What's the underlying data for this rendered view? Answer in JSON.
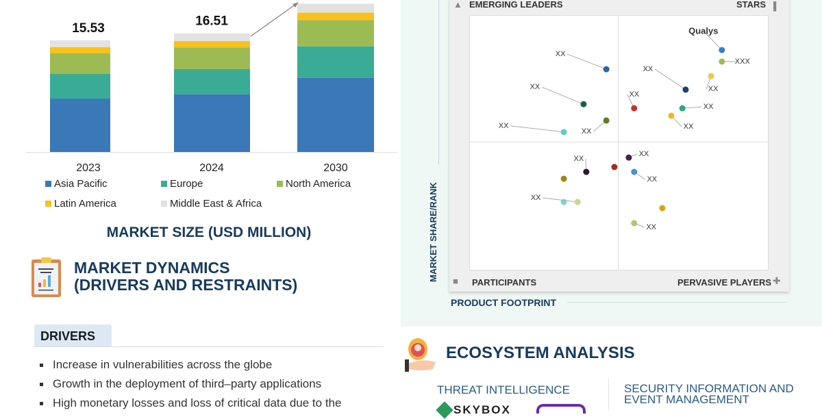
{
  "chart_data": [
    {
      "type": "bar",
      "stacked": true,
      "title": "MARKET SIZE (USD MILLION)",
      "categories": [
        "2023",
        "2024",
        "2030"
      ],
      "totals_labels": [
        "15.53",
        "16.51",
        ""
      ],
      "ylim": [
        0,
        21
      ],
      "grid": false,
      "legend": "bottom",
      "series": [
        {
          "name": "Asia Pacific",
          "color": "#3a78b8",
          "values": [
            7.43,
            8.01,
            10.3
          ]
        },
        {
          "name": "Europe",
          "color": "#3aab95",
          "values": [
            3.43,
            3.52,
            4.4
          ]
        },
        {
          "name": "North America",
          "color": "#9cbb55",
          "values": [
            2.86,
            3.03,
            3.65
          ]
        },
        {
          "name": "Latin America",
          "color": "#f9c11b",
          "values": [
            0.86,
            0.88,
            1.05
          ]
        },
        {
          "name": "Middle East & Africa",
          "color": "#e2e2e2",
          "values": [
            0.95,
            1.07,
            1.25
          ]
        }
      ]
    },
    {
      "type": "scatter",
      "xlabel": "PRODUCT FOOTPRINT",
      "ylabel": "MARKET SHARE/RANK",
      "xlim": [
        0,
        100
      ],
      "ylim": [
        0,
        100
      ],
      "quadrants": {
        "top_left": "EMERGING LEADERS",
        "top_right": "STARS",
        "bottom_left": "PARTICIPANTS",
        "bottom_right": "PERVASIVE PLAYERS"
      },
      "points": [
        {
          "label": "Qualys",
          "x": 84.4,
          "y": 86.3,
          "color": "#3a7fc8"
        },
        {
          "label": "XXX",
          "x": 84.4,
          "y": 81.8,
          "color": "#9cbb55"
        },
        {
          "label": "XX",
          "x": 80.8,
          "y": 76.1,
          "color": "#f5c842"
        },
        {
          "label": "XX",
          "x": 72.3,
          "y": 70.8,
          "color": "#1c3f6e"
        },
        {
          "label": "XX",
          "x": 55.1,
          "y": 63.5,
          "color": "#c8312f"
        },
        {
          "label": "XX",
          "x": 71.2,
          "y": 63.5,
          "color": "#2aa592"
        },
        {
          "label": "XX",
          "x": 67.5,
          "y": 60.6,
          "color": "#f5b81c"
        },
        {
          "label": "XX",
          "x": 45.8,
          "y": 78.8,
          "color": "#2a66a8"
        },
        {
          "label": "XX",
          "x": 38.2,
          "y": 65.1,
          "color": "#1f5e4a"
        },
        {
          "label": "XX",
          "x": 45.8,
          "y": 58.7,
          "color": "#5f7a23"
        },
        {
          "label": "XX",
          "x": 31.6,
          "y": 54.2,
          "color": "#5bd0c0"
        },
        {
          "label": "XX",
          "x": 53.3,
          "y": 44.2,
          "color": "#45204e"
        },
        {
          "label": "XX",
          "x": 39.1,
          "y": 38.6,
          "color": "#2a1a2e"
        },
        {
          "label": "",
          "x": 48.5,
          "y": 40.5,
          "color": "#a52a25"
        },
        {
          "label": "XX",
          "x": 55.1,
          "y": 38.6,
          "color": "#4a90d6"
        },
        {
          "label": "",
          "x": 31.6,
          "y": 35.9,
          "color": "#a88410"
        },
        {
          "label": "",
          "x": 31.6,
          "y": 26.8,
          "color": "#7fd6cc"
        },
        {
          "label": "XX",
          "x": 36.2,
          "y": 26.8,
          "color": "#c3d98f"
        },
        {
          "label": "",
          "x": 64.5,
          "y": 24.4,
          "color": "#e0a010"
        },
        {
          "label": "XX",
          "x": 55.1,
          "y": 18.5,
          "color": "#a8c870"
        }
      ]
    }
  ],
  "dynamics": {
    "title_line1": "MARKET DYNAMICS",
    "title_line2": "(DRIVERS AND RESTRAINTS)",
    "drivers_tab": "DRIVERS",
    "drivers": [
      "Increase in vulnerabilities across the globe",
      "Growth in the deployment of third–party applications",
      "High monetary losses and loss of critical data due to the"
    ]
  },
  "ecosystem": {
    "title": "ECOSYSTEM ANALYSIS",
    "threat_intelligence": "THREAT INTELLIGENCE",
    "siem_line1": "SECURITY INFORMATION AND",
    "siem_line2": "EVENT MANAGEMENT",
    "logos": [
      "SKYBOX"
    ]
  }
}
